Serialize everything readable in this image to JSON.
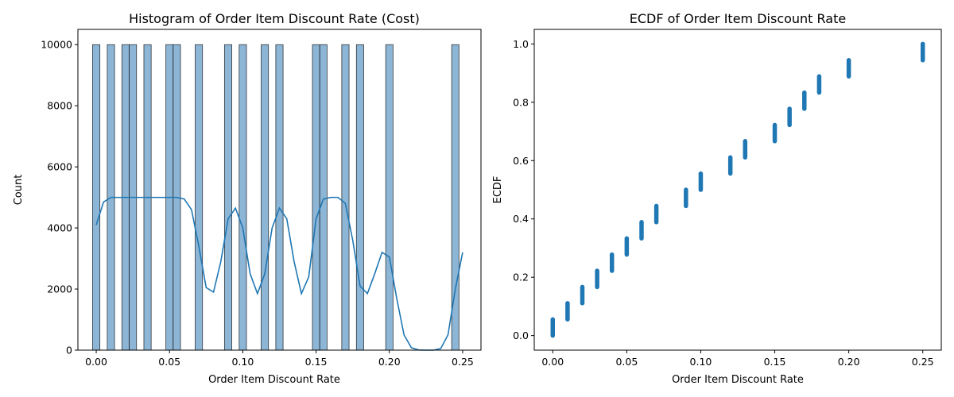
{
  "chart_data": [
    {
      "type": "bar",
      "subtype": "histogram-with-kde",
      "title": "Histogram of Order Item Discount Rate (Cost)",
      "xlabel": "Order Item Discount Rate",
      "ylabel": "Count",
      "xlim": [
        -0.0125,
        0.2625
      ],
      "ylim": [
        0,
        10500
      ],
      "xticks": [
        "0.00",
        "0.05",
        "0.10",
        "0.15",
        "0.20",
        "0.25"
      ],
      "yticks": [
        "0",
        "2000",
        "4000",
        "6000",
        "8000",
        "10000"
      ],
      "grid": false,
      "bar_color": "#8DB5D5",
      "line_color": "#1f77b4",
      "bin_width": 0.005,
      "bins": [
        {
          "x": 0.0,
          "count": 10000
        },
        {
          "x": 0.01,
          "count": 10000
        },
        {
          "x": 0.02,
          "count": 10000
        },
        {
          "x": 0.025,
          "count": 10000
        },
        {
          "x": 0.035,
          "count": 10000
        },
        {
          "x": 0.05,
          "count": 10000
        },
        {
          "x": 0.055,
          "count": 10000
        },
        {
          "x": 0.07,
          "count": 10000
        },
        {
          "x": 0.09,
          "count": 10000
        },
        {
          "x": 0.1,
          "count": 10000
        },
        {
          "x": 0.115,
          "count": 10000
        },
        {
          "x": 0.125,
          "count": 10000
        },
        {
          "x": 0.15,
          "count": 10000
        },
        {
          "x": 0.155,
          "count": 10000
        },
        {
          "x": 0.17,
          "count": 10000
        },
        {
          "x": 0.18,
          "count": 10000
        },
        {
          "x": 0.2,
          "count": 10000
        },
        {
          "x": 0.245,
          "count": 10000
        }
      ],
      "kde": {
        "x": [
          0.0,
          0.005,
          0.01,
          0.015,
          0.02,
          0.03,
          0.04,
          0.05,
          0.055,
          0.06,
          0.065,
          0.07,
          0.075,
          0.08,
          0.085,
          0.09,
          0.095,
          0.1,
          0.105,
          0.11,
          0.115,
          0.12,
          0.125,
          0.13,
          0.135,
          0.14,
          0.145,
          0.15,
          0.155,
          0.16,
          0.165,
          0.17,
          0.175,
          0.18,
          0.185,
          0.19,
          0.195,
          0.2,
          0.205,
          0.21,
          0.215,
          0.22,
          0.225,
          0.23,
          0.235,
          0.24,
          0.245,
          0.25
        ],
        "y": [
          4100,
          4850,
          5000,
          5000,
          5000,
          5000,
          5000,
          5000,
          5000,
          4950,
          4600,
          3400,
          2050,
          1900,
          2900,
          4300,
          4650,
          4000,
          2500,
          1850,
          2500,
          4000,
          4650,
          4300,
          2900,
          1850,
          2400,
          4300,
          4950,
          5000,
          5000,
          4800,
          3600,
          2100,
          1850,
          2500,
          3200,
          3050,
          1700,
          500,
          80,
          5,
          0,
          0,
          50,
          500,
          2000,
          3200
        ]
      }
    },
    {
      "type": "scatter",
      "subtype": "ecdf",
      "title": "ECDF of Order Item Discount Rate",
      "xlabel": "Order Item Discount Rate",
      "ylabel": "ECDF",
      "xlim": [
        -0.0125,
        0.2625
      ],
      "ylim": [
        -0.05,
        1.05
      ],
      "xticks": [
        "0.00",
        "0.05",
        "0.10",
        "0.15",
        "0.20",
        "0.25"
      ],
      "yticks": [
        "0.0",
        "0.2",
        "0.4",
        "0.6",
        "0.8",
        "1.0"
      ],
      "grid": false,
      "color": "#1f77b4",
      "segments": [
        {
          "x": 0.0,
          "y_start": 0.0,
          "y_end": 0.0556
        },
        {
          "x": 0.01,
          "y_start": 0.0556,
          "y_end": 0.1111
        },
        {
          "x": 0.02,
          "y_start": 0.1111,
          "y_end": 0.1667
        },
        {
          "x": 0.03,
          "y_start": 0.1667,
          "y_end": 0.2222
        },
        {
          "x": 0.04,
          "y_start": 0.2222,
          "y_end": 0.2778
        },
        {
          "x": 0.05,
          "y_start": 0.2778,
          "y_end": 0.3333
        },
        {
          "x": 0.06,
          "y_start": 0.3333,
          "y_end": 0.3889
        },
        {
          "x": 0.07,
          "y_start": 0.3889,
          "y_end": 0.4444
        },
        {
          "x": 0.09,
          "y_start": 0.4444,
          "y_end": 0.5
        },
        {
          "x": 0.1,
          "y_start": 0.5,
          "y_end": 0.5556
        },
        {
          "x": 0.12,
          "y_start": 0.5556,
          "y_end": 0.6111
        },
        {
          "x": 0.13,
          "y_start": 0.6111,
          "y_end": 0.6667
        },
        {
          "x": 0.15,
          "y_start": 0.6667,
          "y_end": 0.7222
        },
        {
          "x": 0.16,
          "y_start": 0.7222,
          "y_end": 0.7778
        },
        {
          "x": 0.17,
          "y_start": 0.7778,
          "y_end": 0.8333
        },
        {
          "x": 0.18,
          "y_start": 0.8333,
          "y_end": 0.8889
        },
        {
          "x": 0.2,
          "y_start": 0.8889,
          "y_end": 0.9444
        },
        {
          "x": 0.25,
          "y_start": 0.9444,
          "y_end": 1.0
        }
      ]
    }
  ]
}
